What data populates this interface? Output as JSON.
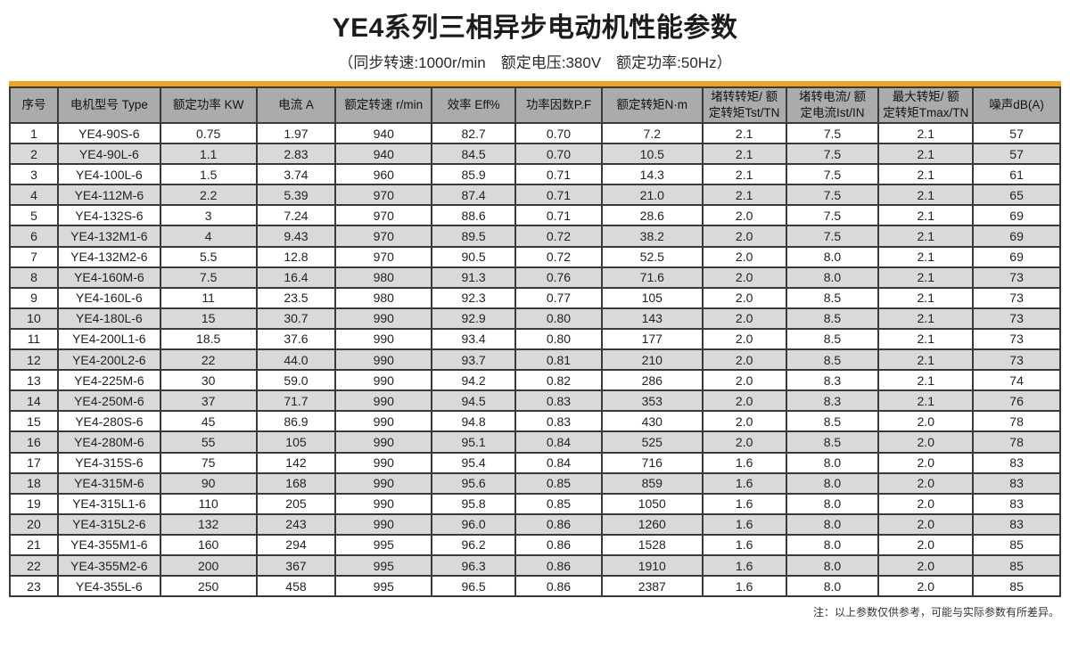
{
  "page": {
    "title": "YE4系列三相异步电动机性能参数",
    "subtitle": "（同步转速:1000r/min　额定电压:380V　额定功率:50Hz）",
    "footnote": "注：以上参数仅供参考，可能与实际参数有所差异。"
  },
  "colors": {
    "accent_orange": "#f0a32b",
    "header_bg": "#ababab",
    "row_alt_bg": "#d9d9d9",
    "border": "#3a3a3a"
  },
  "table": {
    "headers": [
      "序号",
      "电机型号 Type",
      "额定功率 KW",
      "电流 A",
      "额定转速 r/min",
      "效率 Eff%",
      "功率因数P.F",
      "额定转矩N·m",
      "堵转转矩/ 额\n定转矩Tst/TN",
      "堵转电流/ 额\n定电流Ist/IN",
      "最大转矩/ 额\n定转矩Tmax/TN",
      "噪声dB(A)"
    ],
    "rows": [
      [
        "1",
        "YE4-90S-6",
        "0.75",
        "1.97",
        "940",
        "82.7",
        "0.70",
        "7.2",
        "2.1",
        "7.5",
        "2.1",
        "57"
      ],
      [
        "2",
        "YE4-90L-6",
        "1.1",
        "2.83",
        "940",
        "84.5",
        "0.70",
        "10.5",
        "2.1",
        "7.5",
        "2.1",
        "57"
      ],
      [
        "3",
        "YE4-100L-6",
        "1.5",
        "3.74",
        "960",
        "85.9",
        "0.71",
        "14.3",
        "2.1",
        "7.5",
        "2.1",
        "61"
      ],
      [
        "4",
        "YE4-112M-6",
        "2.2",
        "5.39",
        "970",
        "87.4",
        "0.71",
        "21.0",
        "2.1",
        "7.5",
        "2.1",
        "65"
      ],
      [
        "5",
        "YE4-132S-6",
        "3",
        "7.24",
        "970",
        "88.6",
        "0.71",
        "28.6",
        "2.0",
        "7.5",
        "2.1",
        "69"
      ],
      [
        "6",
        "YE4-132M1-6",
        "4",
        "9.43",
        "970",
        "89.5",
        "0.72",
        "38.2",
        "2.0",
        "7.5",
        "2.1",
        "69"
      ],
      [
        "7",
        "YE4-132M2-6",
        "5.5",
        "12.8",
        "970",
        "90.5",
        "0.72",
        "52.5",
        "2.0",
        "8.0",
        "2.1",
        "69"
      ],
      [
        "8",
        "YE4-160M-6",
        "7.5",
        "16.4",
        "980",
        "91.3",
        "0.76",
        "71.6",
        "2.0",
        "8.0",
        "2.1",
        "73"
      ],
      [
        "9",
        "YE4-160L-6",
        "11",
        "23.5",
        "980",
        "92.3",
        "0.77",
        "105",
        "2.0",
        "8.5",
        "2.1",
        "73"
      ],
      [
        "10",
        "YE4-180L-6",
        "15",
        "30.7",
        "990",
        "92.9",
        "0.80",
        "143",
        "2.0",
        "8.5",
        "2.1",
        "73"
      ],
      [
        "11",
        "YE4-200L1-6",
        "18.5",
        "37.6",
        "990",
        "93.4",
        "0.80",
        "177",
        "2.0",
        "8.5",
        "2.1",
        "73"
      ],
      [
        "12",
        "YE4-200L2-6",
        "22",
        "44.0",
        "990",
        "93.7",
        "0.81",
        "210",
        "2.0",
        "8.5",
        "2.1",
        "73"
      ],
      [
        "13",
        "YE4-225M-6",
        "30",
        "59.0",
        "990",
        "94.2",
        "0.82",
        "286",
        "2.0",
        "8.3",
        "2.1",
        "74"
      ],
      [
        "14",
        "YE4-250M-6",
        "37",
        "71.7",
        "990",
        "94.5",
        "0.83",
        "353",
        "2.0",
        "8.3",
        "2.1",
        "76"
      ],
      [
        "15",
        "YE4-280S-6",
        "45",
        "86.9",
        "990",
        "94.8",
        "0.83",
        "430",
        "2.0",
        "8.5",
        "2.0",
        "78"
      ],
      [
        "16",
        "YE4-280M-6",
        "55",
        "105",
        "990",
        "95.1",
        "0.84",
        "525",
        "2.0",
        "8.5",
        "2.0",
        "78"
      ],
      [
        "17",
        "YE4-315S-6",
        "75",
        "142",
        "990",
        "95.4",
        "0.84",
        "716",
        "1.6",
        "8.0",
        "2.0",
        "83"
      ],
      [
        "18",
        "YE4-315M-6",
        "90",
        "168",
        "990",
        "95.6",
        "0.85",
        "859",
        "1.6",
        "8.0",
        "2.0",
        "83"
      ],
      [
        "19",
        "YE4-315L1-6",
        "110",
        "205",
        "990",
        "95.8",
        "0.85",
        "1050",
        "1.6",
        "8.0",
        "2.0",
        "83"
      ],
      [
        "20",
        "YE4-315L2-6",
        "132",
        "243",
        "990",
        "96.0",
        "0.86",
        "1260",
        "1.6",
        "8.0",
        "2.0",
        "83"
      ],
      [
        "21",
        "YE4-355M1-6",
        "160",
        "294",
        "995",
        "96.2",
        "0.86",
        "1528",
        "1.6",
        "8.0",
        "2.0",
        "85"
      ],
      [
        "22",
        "YE4-355M2-6",
        "200",
        "367",
        "995",
        "96.3",
        "0.86",
        "1910",
        "1.6",
        "8.0",
        "2.0",
        "85"
      ],
      [
        "23",
        "YE4-355L-6",
        "250",
        "458",
        "995",
        "96.5",
        "0.86",
        "2387",
        "1.6",
        "8.0",
        "2.0",
        "85"
      ]
    ]
  }
}
